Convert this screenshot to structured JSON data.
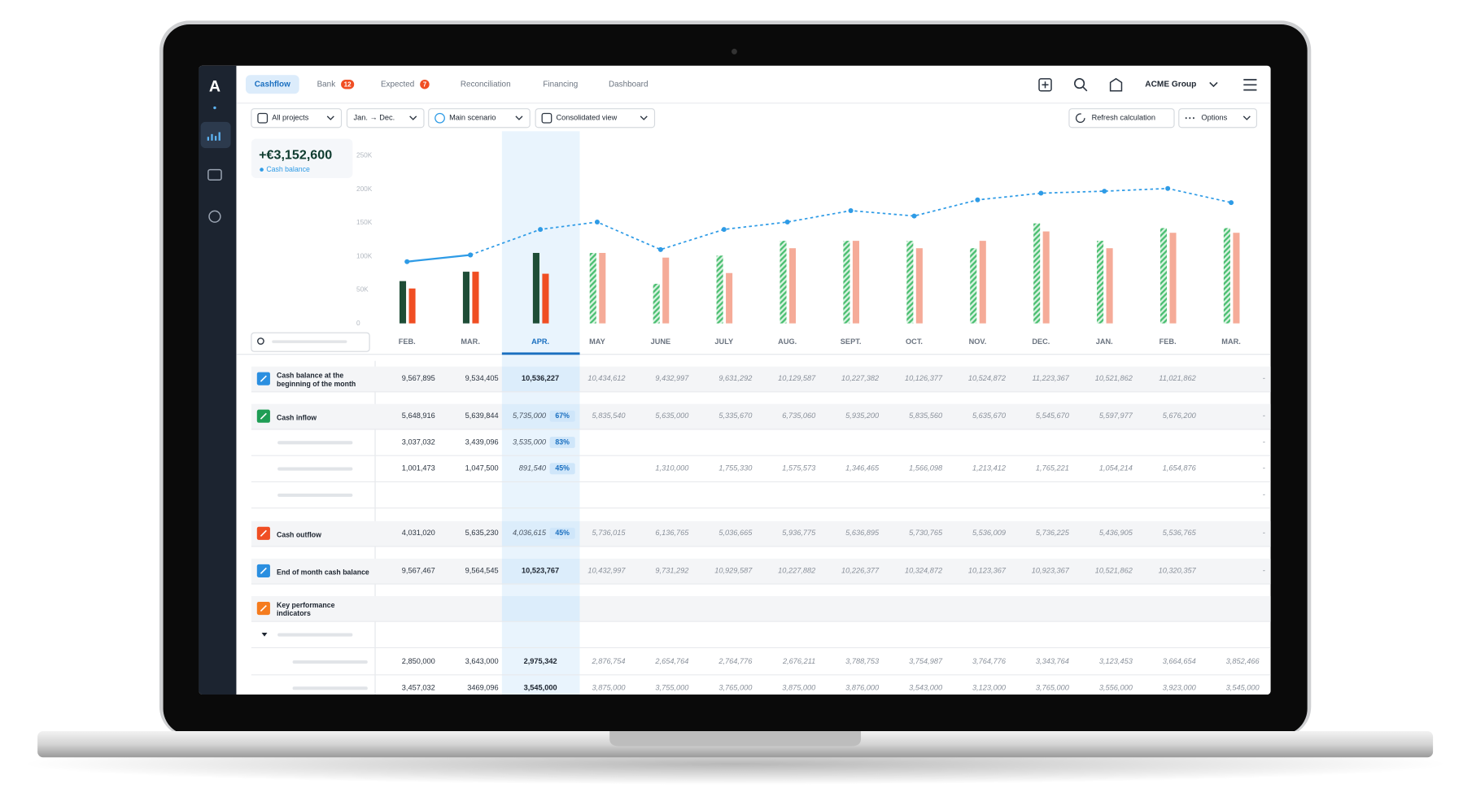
{
  "sidebar": {
    "logo": "A"
  },
  "tabs": [
    {
      "label": "Cashflow",
      "active": true
    },
    {
      "label": "Bank",
      "badge": "12"
    },
    {
      "label": "Expected",
      "badge": "7"
    },
    {
      "label": "Reconciliation"
    },
    {
      "label": "Financing"
    },
    {
      "label": "Dashboard"
    }
  ],
  "organization": "ACME Group",
  "filters": [
    "All projects",
    "Jan. → Dec.",
    "Main scenario",
    "Consolidated view"
  ],
  "actions": [
    "Refresh calculation",
    "Options"
  ],
  "balance": {
    "amount": "+€3,152,600",
    "label": "Cash balance"
  },
  "chart": {
    "months": [
      "FEB.",
      "MAR.",
      "APR.",
      "MAY",
      "JUNE",
      "JULY",
      "AUG.",
      "SEPT.",
      "OCT.",
      "NOV.",
      "DEC.",
      "JAN.",
      "FEB.",
      "MAR."
    ],
    "selected_month": 2,
    "ylim": [
      0,
      250000
    ],
    "yticks": [
      0,
      {
        "value": 50000,
        "label": "50K"
      },
      {
        "value": 100000,
        "label": "100K"
      },
      {
        "value": 150000,
        "label": "150K"
      },
      {
        "value": 200000,
        "label": "200K"
      },
      {
        "value": 250000,
        "label": "250K"
      }
    ],
    "inflow_actual": {
      "color": "#1e4d36",
      "values": [
        63000,
        77000,
        105000,
        null,
        null,
        null,
        null,
        null,
        null,
        null,
        null,
        null,
        null,
        null
      ]
    },
    "outflow_actual": {
      "color": "#f04e23",
      "values": [
        52000,
        77000,
        74000,
        null,
        null,
        null,
        null,
        null,
        null,
        null,
        null,
        null,
        null,
        null
      ]
    },
    "inflow_forecast": {
      "color": "#4cbf72",
      "values": [
        null,
        null,
        null,
        105000,
        59000,
        101000,
        123000,
        123000,
        123000,
        112000,
        149000,
        123000,
        142000,
        142000
      ]
    },
    "outflow_forecast": {
      "color": "#f5ab98",
      "values": [
        null,
        null,
        null,
        105000,
        98000,
        75000,
        112000,
        123000,
        112000,
        123000,
        137000,
        112000,
        135000,
        135000
      ]
    },
    "line_actual": {
      "color": "#2e9be6",
      "values": [
        92000,
        102000,
        null,
        null,
        null,
        null,
        null,
        null,
        null,
        null,
        null,
        null,
        null,
        null
      ]
    },
    "line_forecast": {
      "color": "#2e9be6",
      "values": [
        null,
        102000,
        140000,
        151000,
        110000,
        140000,
        151000,
        168000,
        160000,
        184000,
        194000,
        197000,
        201000,
        180000
      ]
    }
  },
  "table": {
    "rows": [
      {
        "label": "Cash balance at the beginning of the month",
        "icon": "#2b8fe0",
        "shaded": true,
        "cells": [
          "9,567,895",
          "9,534,405",
          "10,536,227",
          "10,434,612",
          "9,432,997",
          "9,631,292",
          "10,129,587",
          "10,227,382",
          "10,126,377",
          "10,524,872",
          "11,223,367",
          "10,521,862",
          "11,021,862",
          "-"
        ]
      },
      {
        "label": "Cash inflow",
        "icon": "#1f9d55",
        "shaded": true,
        "pct": "67%",
        "cells": [
          "5,648,916",
          "5,639,844",
          "5,735,000",
          "5,835,540",
          "5,635,000",
          "5,335,670",
          "6,735,060",
          "5,935,200",
          "5,835,560",
          "5,635,670",
          "5,545,670",
          "5,597,977",
          "5,676,200",
          "-"
        ]
      },
      {
        "label": null,
        "pct": "83%",
        "cells": [
          "3,037,032",
          "3,439,096",
          "3,535,000",
          null,
          null,
          null,
          null,
          null,
          null,
          null,
          null,
          null,
          null,
          "-"
        ]
      },
      {
        "label": null,
        "pct": "45%",
        "cells": [
          "1,001,473",
          "1,047,500",
          "891,540",
          null,
          "1,310,000",
          "1,755,330",
          "1,575,573",
          "1,346,465",
          "1,566,098",
          "1,213,412",
          "1,765,221",
          "1,054,214",
          "1,654,876",
          "-"
        ]
      },
      {
        "label": null,
        "cells": [
          null,
          null,
          null,
          null,
          null,
          null,
          null,
          null,
          null,
          null,
          null,
          null,
          null,
          "-"
        ]
      },
      {
        "label": "Cash outflow",
        "icon": "#f04e23",
        "shaded": true,
        "pct": "45%",
        "cells": [
          "4,031,020",
          "5,635,230",
          "4,036,615",
          "5,736,015",
          "6,136,765",
          "5,036,665",
          "5,936,775",
          "5,636,895",
          "5,730,765",
          "5,536,009",
          "5,736,225",
          "5,436,905",
          "5,536,765",
          "-"
        ]
      },
      {
        "label": "End of month cash balance",
        "icon": "#2b8fe0",
        "shaded": true,
        "cells": [
          "9,567,467",
          "9,564,545",
          "10,523,767",
          "10,432,997",
          "9,731,292",
          "10,929,587",
          "10,227,882",
          "10,226,377",
          "10,324,872",
          "10,123,367",
          "10,923,367",
          "10,521,862",
          "10,320,357",
          "-"
        ]
      },
      {
        "label": "Key performance indicators",
        "icon": "#f57c1f",
        "shaded": true
      },
      {
        "label": null,
        "collapsible": true
      },
      {
        "label": null,
        "indent": true,
        "cells": [
          "2,850,000",
          "3,643,000",
          "2,975,342",
          "2,876,754",
          "2,654,764",
          "2,764,776",
          "2,676,211",
          "3,788,753",
          "3,754,987",
          "3,764,776",
          "3,343,764",
          "3,123,453",
          "3,664,654",
          "3,852,466"
        ]
      },
      {
        "label": null,
        "indent": true,
        "cells": [
          "3,457,032",
          "3469,096",
          "3,545,000",
          "3,875,000",
          "3,755,000",
          "3,765,000",
          "3,875,000",
          "3,876,000",
          "3,543,000",
          "3,123,000",
          "3,765,000",
          "3,556,000",
          "3,923,000",
          "3,545,000"
        ]
      }
    ]
  }
}
